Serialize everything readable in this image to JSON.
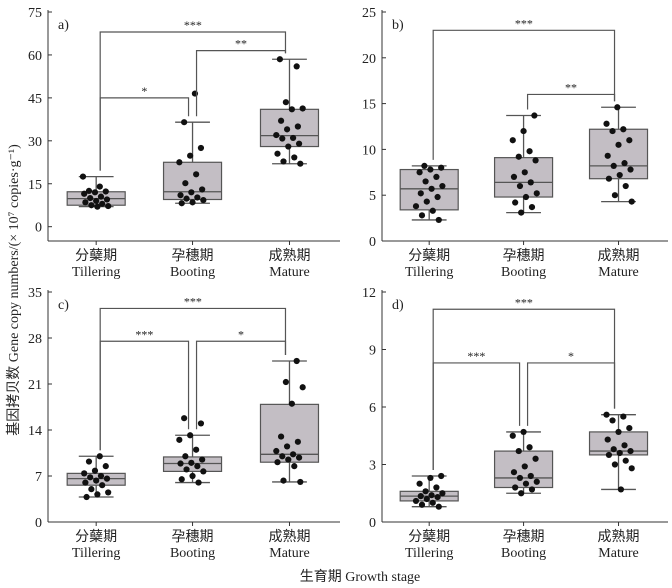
{
  "chart_data": {
    "type": "box",
    "ylabel": "基因拷贝数 Gene copy numbers/(× 10⁷ copies·g⁻¹)",
    "xlabel": "生育期 Growth stage",
    "categories": [
      {
        "cn": "分蘖期",
        "en": "Tillering"
      },
      {
        "cn": "孕穗期",
        "en": "Booting"
      },
      {
        "cn": "成熟期",
        "en": "Mature"
      }
    ],
    "colors": {
      "box": "#c3bec4",
      "line": "#555555",
      "point": "#111111"
    },
    "panels": [
      {
        "label": "a)",
        "ylim": [
          -5,
          75
        ],
        "ticks": [
          0,
          15,
          30,
          45,
          60,
          75
        ],
        "boxes": [
          {
            "min": 7,
            "q1": 7.5,
            "median": 9.8,
            "q3": 12.2,
            "max": 17.5
          },
          {
            "min": 8.2,
            "q1": 9.5,
            "median": 12.2,
            "q3": 22.5,
            "max": 36.5
          },
          {
            "min": 22,
            "q1": 28,
            "median": 31.8,
            "q3": 41,
            "max": 58.5
          }
        ],
        "points": [
          [
            17.5,
            14,
            12.5,
            12.3,
            12,
            11.5,
            10.5,
            10,
            9.5,
            9,
            8.5,
            8,
            7.5,
            7.2,
            7
          ],
          [
            46.5,
            36.5,
            27.5,
            24.8,
            22.5,
            18.3,
            15.2,
            13,
            12,
            11,
            10.2,
            9.8,
            9.3,
            8.5,
            8.2
          ],
          [
            58.5,
            56,
            43.5,
            41.3,
            41,
            37,
            35,
            34,
            32,
            31,
            30.8,
            29,
            28,
            25.5,
            24.2,
            22.8,
            22
          ]
        ],
        "sig": [
          {
            "from": 0,
            "to": 2,
            "y": 68,
            "mark": "***"
          },
          {
            "from": 1,
            "to": 2,
            "y": 61.5,
            "mark": "**"
          },
          {
            "from": 0,
            "to": 1,
            "y": 45,
            "mark": "*"
          }
        ]
      },
      {
        "label": "b)",
        "ylim": [
          0,
          25
        ],
        "ticks": [
          0,
          5,
          10,
          15,
          20,
          25
        ],
        "boxes": [
          {
            "min": 2.3,
            "q1": 3.4,
            "median": 5.7,
            "q3": 7.8,
            "max": 8.2
          },
          {
            "min": 3.1,
            "q1": 4.8,
            "median": 6.4,
            "q3": 9.1,
            "max": 13.7
          },
          {
            "min": 4.3,
            "q1": 6.8,
            "median": 8.2,
            "q3": 12.2,
            "max": 14.6
          }
        ],
        "points": [
          [
            8.2,
            8,
            7.8,
            7.5,
            7,
            6.5,
            6,
            5.7,
            5.2,
            4.8,
            4.3,
            3.8,
            3.3,
            2.8,
            2.3
          ],
          [
            13.7,
            12,
            11,
            9.8,
            9.2,
            8.8,
            7.5,
            7,
            6.4,
            6,
            5.2,
            4.8,
            4.2,
            3.7,
            3.1
          ],
          [
            14.6,
            12.8,
            12.2,
            12,
            11,
            10.5,
            9.3,
            8.5,
            8.2,
            7.8,
            7.2,
            6.8,
            6,
            5,
            4.3
          ]
        ],
        "sig": [
          {
            "from": 0,
            "to": 2,
            "y": 23,
            "mark": "***"
          },
          {
            "from": 1,
            "to": 2,
            "y": 16,
            "mark": "**"
          }
        ]
      },
      {
        "label": "c)",
        "ylim": [
          0,
          35
        ],
        "ticks": [
          0,
          7,
          14,
          21,
          28,
          35
        ],
        "boxes": [
          {
            "min": 3.8,
            "q1": 5.6,
            "median": 6.6,
            "q3": 7.4,
            "max": 10
          },
          {
            "min": 6,
            "q1": 7.7,
            "median": 8.9,
            "q3": 9.9,
            "max": 13.2
          },
          {
            "min": 6.1,
            "q1": 9.1,
            "median": 10.3,
            "q3": 17.9,
            "max": 24.5
          }
        ],
        "points": [
          [
            10,
            9.2,
            8.5,
            7.8,
            7.4,
            7,
            6.8,
            6.6,
            6.3,
            6,
            5.6,
            5,
            4.5,
            4.2,
            3.8
          ],
          [
            15.8,
            15,
            13.2,
            12.5,
            11,
            10,
            9.5,
            9,
            8.9,
            8.5,
            8,
            7.7,
            7,
            6.5,
            6
          ],
          [
            24.5,
            21.3,
            20.5,
            18,
            13,
            12.2,
            11.5,
            10.8,
            10.3,
            10,
            9.8,
            9.5,
            9.1,
            8.5,
            6.3,
            6.1
          ]
        ],
        "sig": [
          {
            "from": 0,
            "to": 2,
            "y": 32.5,
            "mark": "***"
          },
          {
            "from": 0,
            "to": 1,
            "y": 27.5,
            "mark": "***"
          },
          {
            "from": 1,
            "to": 2,
            "y": 27.5,
            "mark": "*"
          }
        ]
      },
      {
        "label": "d)",
        "ylim": [
          0,
          12
        ],
        "ticks": [
          0,
          3,
          6,
          9,
          12
        ],
        "boxes": [
          {
            "min": 0.8,
            "q1": 1.1,
            "median": 1.35,
            "q3": 1.6,
            "max": 2.4
          },
          {
            "min": 1.5,
            "q1": 1.8,
            "median": 2.3,
            "q3": 3.7,
            "max": 4.7
          },
          {
            "min": 1.7,
            "q1": 3.5,
            "median": 3.7,
            "q3": 4.7,
            "max": 5.6
          }
        ],
        "points": [
          [
            2.4,
            2.3,
            2,
            1.8,
            1.6,
            1.5,
            1.4,
            1.35,
            1.3,
            1.2,
            1.1,
            1,
            0.9,
            0.8
          ],
          [
            4.7,
            4.5,
            3.9,
            3.7,
            3.3,
            2.9,
            2.6,
            2.4,
            2.3,
            2.1,
            2,
            1.8,
            1.7,
            1.5
          ],
          [
            5.6,
            5.5,
            5.3,
            4.9,
            4.7,
            4.3,
            4,
            3.8,
            3.7,
            3.6,
            3.5,
            3.2,
            3,
            2.8,
            1.7
          ]
        ],
        "sig": [
          {
            "from": 0,
            "to": 2,
            "y": 11.1,
            "mark": "***"
          },
          {
            "from": 0,
            "to": 1,
            "y": 8.3,
            "mark": "***"
          },
          {
            "from": 1,
            "to": 2,
            "y": 8.3,
            "mark": "*"
          }
        ]
      }
    ]
  }
}
